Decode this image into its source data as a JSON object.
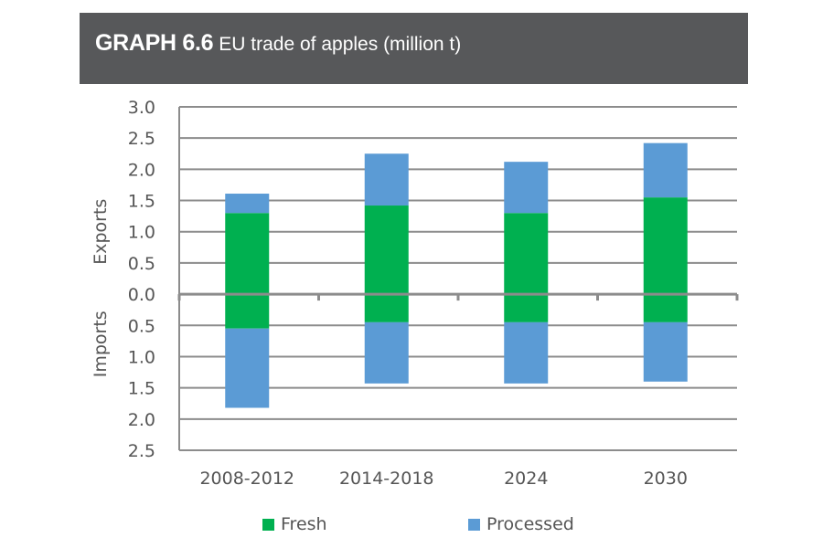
{
  "header": {
    "graph_number": "GRAPH 6.6",
    "title": "EU trade of apples (million t)"
  },
  "colors": {
    "fresh": "#00b050",
    "processed": "#5b9bd5",
    "grid": "#8c8c8c",
    "banner": "#57585a"
  },
  "chart_data": {
    "type": "bar",
    "stacked": true,
    "diverging": true,
    "title": "EU trade of apples (million t)",
    "categories": [
      "2008-2012",
      "2014-2018",
      "2024",
      "2030"
    ],
    "y_side_labels": {
      "upper": "Exports",
      "lower": "Imports"
    },
    "ylim": [
      -2.5,
      3.0
    ],
    "yticks": [
      {
        "value": 3.0,
        "label": "3.0"
      },
      {
        "value": 2.5,
        "label": "2.5"
      },
      {
        "value": 2.0,
        "label": "2.0"
      },
      {
        "value": 1.5,
        "label": "1.5"
      },
      {
        "value": 1.0,
        "label": "1.0"
      },
      {
        "value": 0.5,
        "label": "0.5"
      },
      {
        "value": 0.0,
        "label": "0.0"
      },
      {
        "value": -0.5,
        "label": "0.5"
      },
      {
        "value": -1.0,
        "label": "1.0"
      },
      {
        "value": -1.5,
        "label": "1.5"
      },
      {
        "value": -2.0,
        "label": "2.0"
      },
      {
        "value": -2.5,
        "label": "2.5"
      }
    ],
    "grid": true,
    "legend_position": "bottom",
    "series": [
      {
        "name": "Fresh",
        "color": "#00b050",
        "exports": [
          1.3,
          1.42,
          1.3,
          1.55
        ],
        "imports": [
          0.55,
          0.45,
          0.45,
          0.45
        ]
      },
      {
        "name": "Processed",
        "color": "#5b9bd5",
        "exports": [
          0.31,
          0.83,
          0.82,
          0.87
        ],
        "imports": [
          1.27,
          0.98,
          0.98,
          0.95
        ]
      }
    ]
  }
}
